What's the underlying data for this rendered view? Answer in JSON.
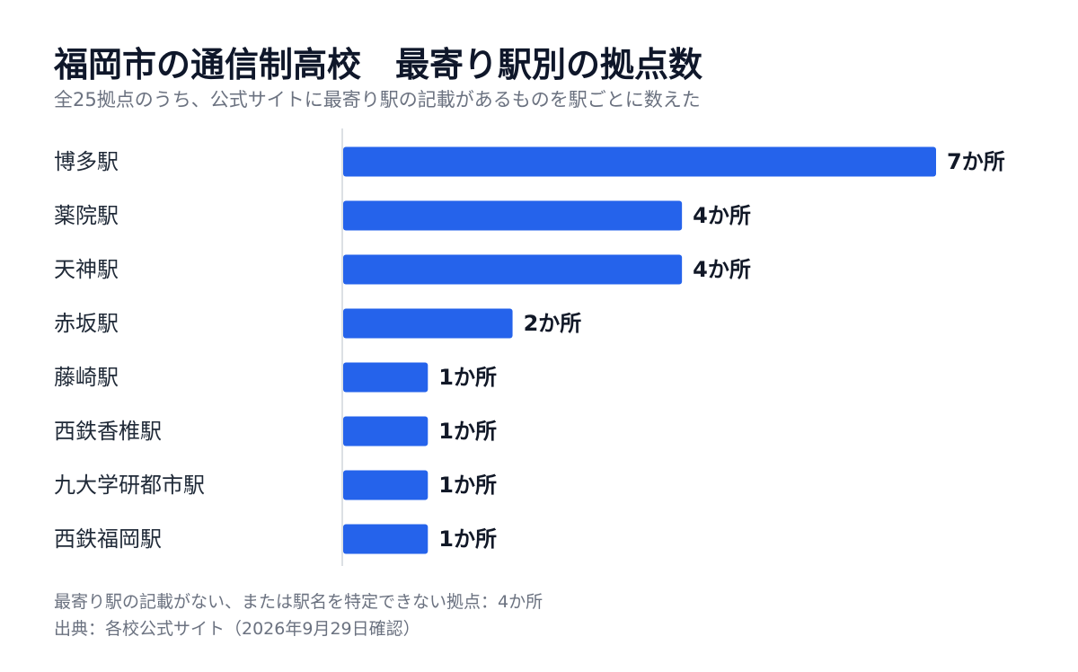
{
  "title": "福岡市の通信制高校　最寄り駅別の拠点数",
  "subtitle": "全25拠点のうち、公式サイトに最寄り駅の記載があるものを駅ごとに数えた",
  "footnote_missing": "最寄り駅の記載がない、または駅名を特定できない拠点：4か所",
  "source": "出典：各校公式サイト（2026年9月29日確認）",
  "colors": {
    "bar": "#2563eb",
    "axis": "#d1d5db"
  },
  "chart_data": {
    "type": "bar",
    "orientation": "horizontal",
    "categories": [
      "博多駅",
      "薬院駅",
      "天神駅",
      "赤坂駅",
      "藤崎駅",
      "西鉄香椎駅",
      "九大学研都市駅",
      "西鉄福岡駅"
    ],
    "values": [
      7,
      4,
      4,
      2,
      1,
      1,
      1,
      1
    ],
    "value_labels": [
      "7か所",
      "4か所",
      "4か所",
      "2か所",
      "1か所",
      "1か所",
      "1か所",
      "1か所"
    ],
    "xlim": [
      0,
      7
    ],
    "grid": false,
    "legend": "none"
  }
}
